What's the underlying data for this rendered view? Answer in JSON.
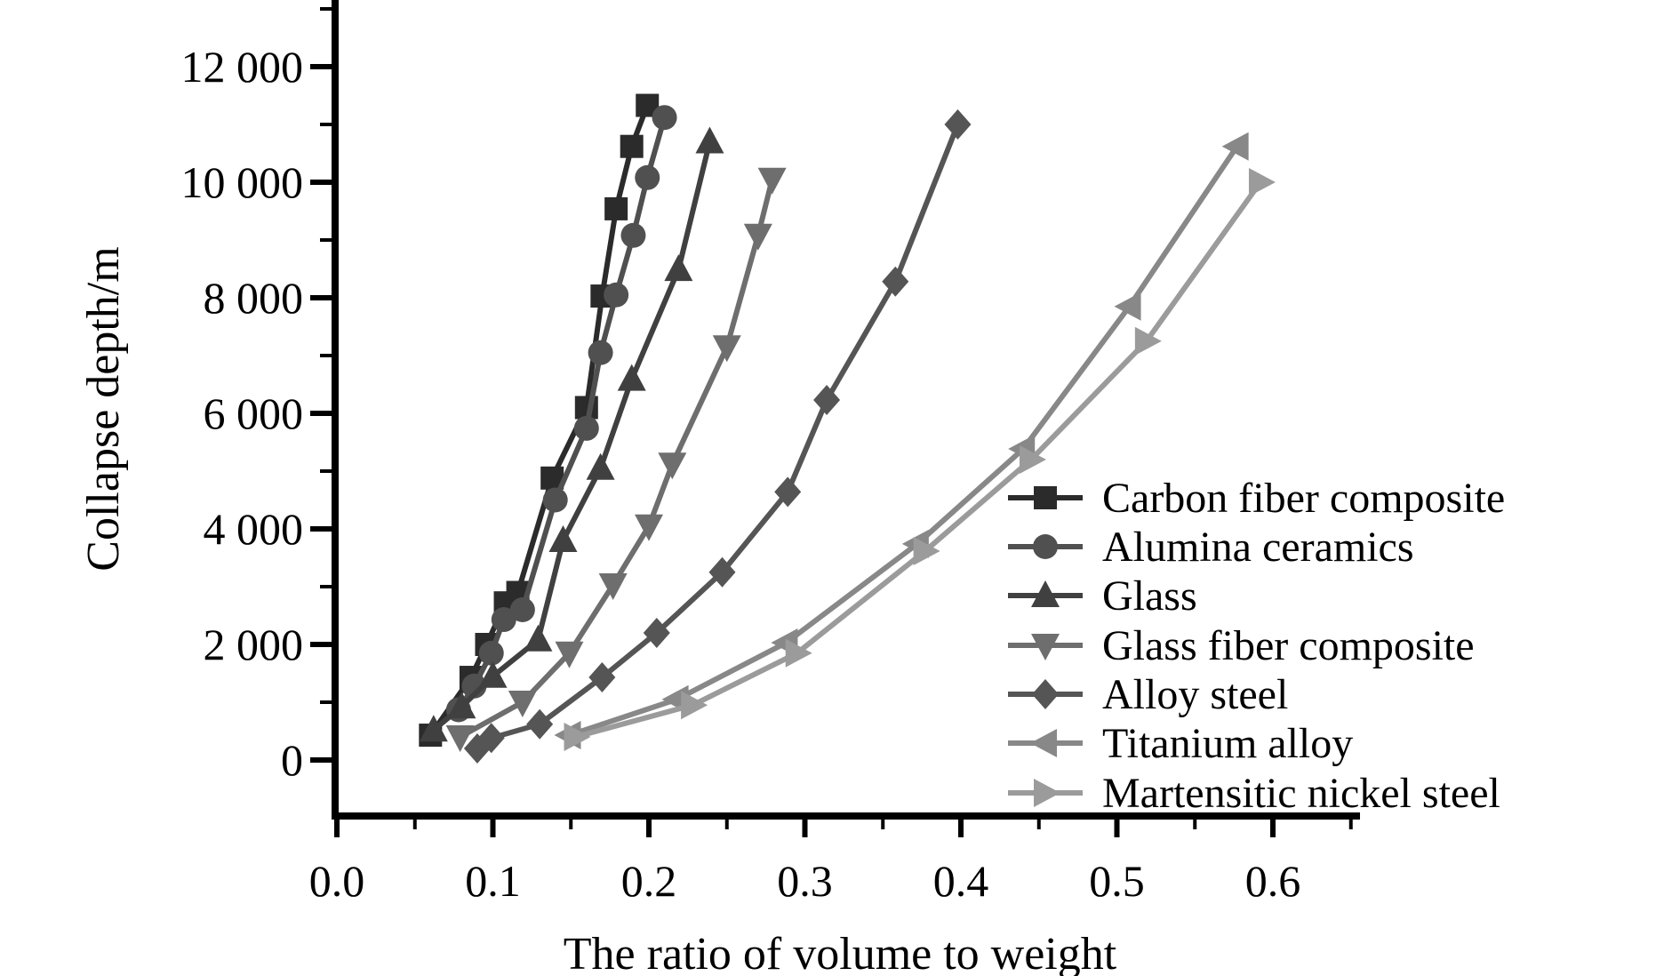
{
  "figure": {
    "background": "#ffffff",
    "text_color": "#000000"
  },
  "chart_data": {
    "type": "line",
    "title": "",
    "xlabel": "The ratio of volume to weight",
    "ylabel": "Collapse depth/m",
    "grid": "off",
    "xlim": [
      0.0,
      0.66
    ],
    "ylim": [
      -1000,
      13200
    ],
    "x_axis": {
      "major_ticks": [
        0.0,
        0.1,
        0.2,
        0.3,
        0.4,
        0.5,
        0.6
      ],
      "tick_labels": [
        "0.0",
        "0.1",
        "0.2",
        "0.3",
        "0.4",
        "0.5",
        "0.6"
      ],
      "minor_ticks": [
        0.05,
        0.15,
        0.25,
        0.35,
        0.45,
        0.55,
        0.65
      ]
    },
    "y_axis": {
      "major_ticks": [
        0,
        2000,
        4000,
        6000,
        8000,
        10000,
        12000
      ],
      "tick_labels": [
        "0",
        "2 000",
        "4 000",
        "6 000",
        "8 000",
        "10 000",
        "12 000"
      ],
      "minor_ticks": [
        1000,
        3000,
        5000,
        7000,
        9000,
        11000,
        13000
      ]
    },
    "legend": {
      "position": "right-middle"
    },
    "series": [
      {
        "name": "Carbon fiber composite",
        "marker": "square",
        "color": "#2b2b2b",
        "points": [
          [
            0.06,
            430
          ],
          [
            0.086,
            1430
          ],
          [
            0.096,
            2000
          ],
          [
            0.108,
            2720
          ],
          [
            0.116,
            2900
          ],
          [
            0.138,
            4880
          ],
          [
            0.16,
            6100
          ],
          [
            0.17,
            8030
          ],
          [
            0.179,
            9540
          ],
          [
            0.189,
            10620
          ],
          [
            0.199,
            11330
          ]
        ]
      },
      {
        "name": "Alumina ceramics",
        "marker": "circle",
        "color": "#505050",
        "points": [
          [
            0.078,
            870
          ],
          [
            0.088,
            1280
          ],
          [
            0.099,
            1850
          ],
          [
            0.107,
            2430
          ],
          [
            0.119,
            2600
          ],
          [
            0.14,
            4500
          ],
          [
            0.16,
            5740
          ],
          [
            0.169,
            7050
          ],
          [
            0.179,
            8050
          ],
          [
            0.19,
            9080
          ],
          [
            0.199,
            10080
          ],
          [
            0.21,
            11120
          ]
        ]
      },
      {
        "name": "Glass",
        "marker": "triangle-up",
        "color": "#404040",
        "points": [
          [
            0.062,
            520
          ],
          [
            0.08,
            920
          ],
          [
            0.1,
            1450
          ],
          [
            0.129,
            2080
          ],
          [
            0.145,
            3800
          ],
          [
            0.169,
            5050
          ],
          [
            0.189,
            6590
          ],
          [
            0.219,
            8490
          ],
          [
            0.239,
            10700
          ]
        ]
      },
      {
        "name": "Glass fiber composite",
        "marker": "triangle-down",
        "color": "#6e6e6e",
        "points": [
          [
            0.079,
            400
          ],
          [
            0.119,
            1000
          ],
          [
            0.149,
            1850
          ],
          [
            0.177,
            3030
          ],
          [
            0.2,
            4050
          ],
          [
            0.215,
            5120
          ],
          [
            0.25,
            7150
          ],
          [
            0.27,
            9080
          ],
          [
            0.279,
            10050
          ]
        ]
      },
      {
        "name": "Alloy steel",
        "marker": "diamond",
        "color": "#555555",
        "points": [
          [
            0.09,
            200
          ],
          [
            0.099,
            380
          ],
          [
            0.13,
            620
          ],
          [
            0.17,
            1430
          ],
          [
            0.205,
            2200
          ],
          [
            0.247,
            3250
          ],
          [
            0.289,
            4640
          ],
          [
            0.314,
            6230
          ],
          [
            0.358,
            8280
          ],
          [
            0.398,
            11000
          ]
        ]
      },
      {
        "name": "Titanium alloy",
        "marker": "triangle-left",
        "color": "#888888",
        "points": [
          [
            0.149,
            430
          ],
          [
            0.218,
            1050
          ],
          [
            0.288,
            2030
          ],
          [
            0.372,
            3740
          ],
          [
            0.44,
            5385
          ],
          [
            0.508,
            7850
          ],
          [
            0.577,
            10620
          ]
        ]
      },
      {
        "name": "Martensitic nickel steel",
        "marker": "triangle-right",
        "color": "#9b9b9b",
        "points": [
          [
            0.153,
            400
          ],
          [
            0.228,
            950
          ],
          [
            0.295,
            1850
          ],
          [
            0.377,
            3615
          ],
          [
            0.445,
            5200
          ],
          [
            0.519,
            7250
          ],
          [
            0.592,
            10000
          ]
        ]
      }
    ]
  }
}
